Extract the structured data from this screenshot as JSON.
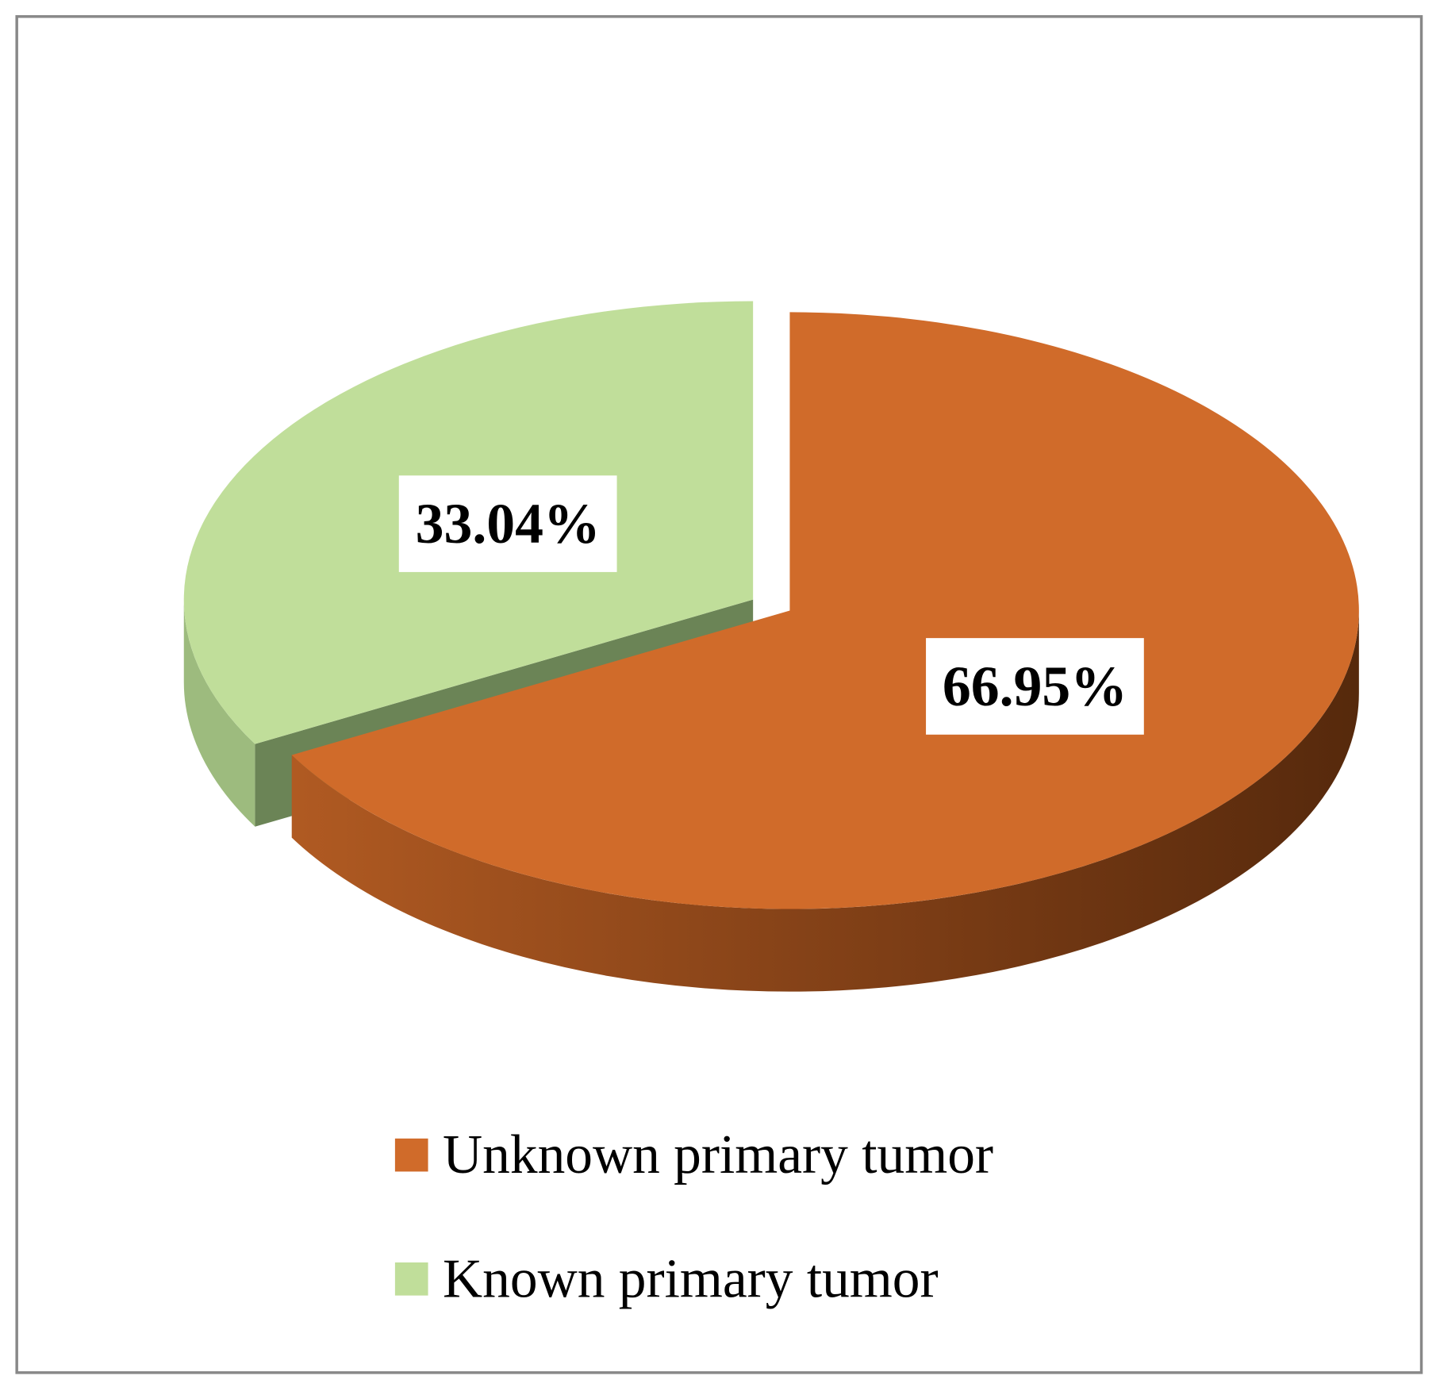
{
  "chart_data": {
    "type": "pie",
    "categories": [
      "Unknown primary tumor",
      "Known primary tumor"
    ],
    "values": [
      66.95,
      33.04
    ],
    "value_labels": [
      "66.95%",
      "33.04%"
    ],
    "colors": [
      "#d06b2a",
      "#c0de9a"
    ],
    "legend": "bottom"
  }
}
